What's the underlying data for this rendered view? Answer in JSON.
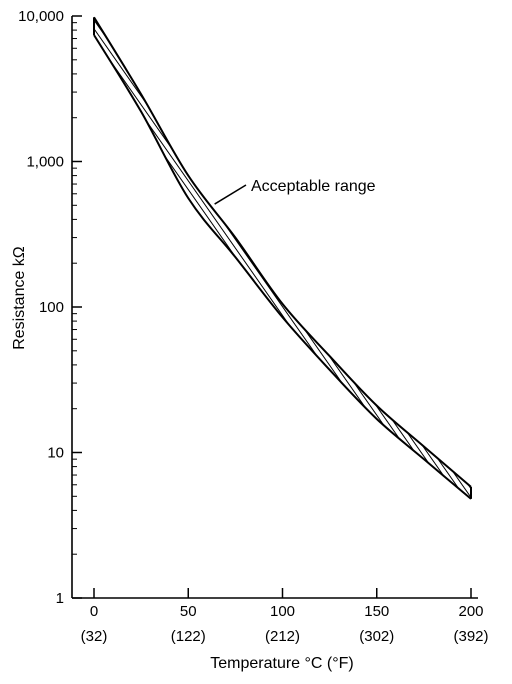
{
  "chart_data": {
    "type": "area",
    "x_scale": "linear",
    "y_scale": "log",
    "xlabel": "Temperature °C (°F)",
    "ylabel": "Resistance kΩ",
    "xlim": [
      0,
      200
    ],
    "ylim": [
      1,
      10000
    ],
    "x_ticks": [
      {
        "value": 0,
        "label": "0",
        "sublabel": "(32)"
      },
      {
        "value": 50,
        "label": "50",
        "sublabel": "(122)"
      },
      {
        "value": 100,
        "label": "100",
        "sublabel": "(212)"
      },
      {
        "value": 150,
        "label": "150",
        "sublabel": "(302)"
      },
      {
        "value": 200,
        "label": "200",
        "sublabel": "(392)"
      }
    ],
    "y_ticks": [
      {
        "value": 1,
        "label": "1"
      },
      {
        "value": 10,
        "label": "10"
      },
      {
        "value": 100,
        "label": "100"
      },
      {
        "value": 1000,
        "label": "1,000"
      },
      {
        "value": 10000,
        "label": "10,000"
      }
    ],
    "grid": false,
    "series": [
      {
        "name": "Acceptable range",
        "x": [
          0,
          25,
          50,
          75,
          100,
          125,
          150,
          175,
          200
        ],
        "upper": [
          9800,
          2900,
          800,
          300,
          105,
          46,
          21,
          11,
          5.8
        ],
        "lower": [
          7400,
          2200,
          560,
          220,
          85,
          37,
          17,
          9,
          4.8
        ]
      }
    ],
    "annotations": [
      {
        "text": "Acceptable range",
        "x": 64,
        "y": 510
      }
    ]
  }
}
